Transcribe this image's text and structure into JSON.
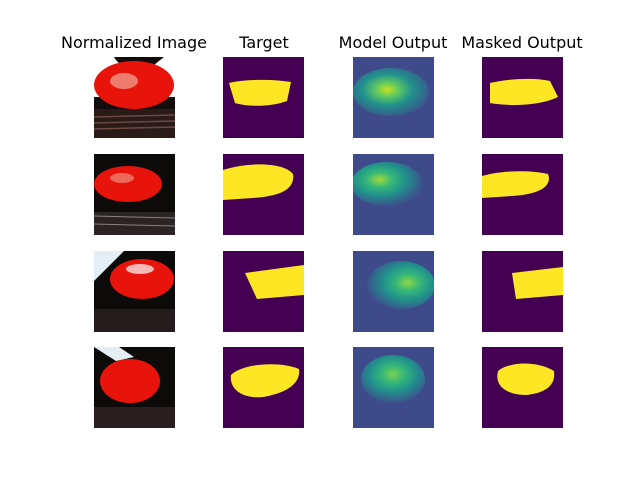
{
  "columns": [
    {
      "title": "Normalized Image"
    },
    {
      "title": "Target"
    },
    {
      "title": "Model Output"
    },
    {
      "title": "Masked Output"
    }
  ],
  "colors": {
    "background_dark": "#440154",
    "mask_yellow": "#fde725",
    "heat_low": "#3b528b",
    "heat_mid": "#21918c",
    "heat_high": "#5ec962",
    "heat_peak": "#fde725",
    "photo_red": "#e8140c",
    "photo_dark": "#0d0a0a"
  },
  "rows": [
    {
      "row": 1
    },
    {
      "row": 2
    },
    {
      "row": 3
    },
    {
      "row": 4
    }
  ]
}
